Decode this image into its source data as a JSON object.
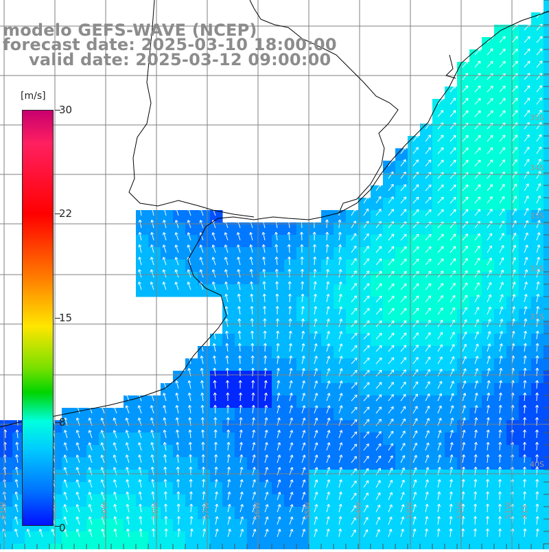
{
  "title": {
    "line1": "modelo GEFS-WAVE (NCEP)",
    "line2": "forecast date: 2025-03-10 18:00:00",
    "line3": "valid date: 2025-03-12 09:00:00"
  },
  "colorbar": {
    "unit": "[m/s]",
    "ticks": [
      "30",
      "22",
      "15",
      "8",
      "0"
    ],
    "tick_values": [
      30,
      22,
      15,
      8,
      0
    ],
    "min": 0,
    "max": 30
  },
  "lat_labels": [
    "35S",
    "34S",
    "33S",
    "32S",
    "31S",
    "40S"
  ],
  "lon_labels": [
    "61W",
    "60W",
    "59W",
    "58W",
    "57W",
    "56W",
    "55W",
    "54W",
    "53W",
    "52W",
    "51W",
    "41S"
  ],
  "colors": {
    "land": "#ffffff",
    "coast": "#000000",
    "grid": "#7f7f7f",
    "arrows": "#ffffff",
    "title": "#8c8c8c",
    "wind_low": "#0010ff",
    "wind_mid": "#00c8ff",
    "wind_high": "#00ffc0"
  },
  "field": {
    "description_legend": "wind speed magnitude with direction arrows",
    "dominant_direction": "north / north-east"
  }
}
